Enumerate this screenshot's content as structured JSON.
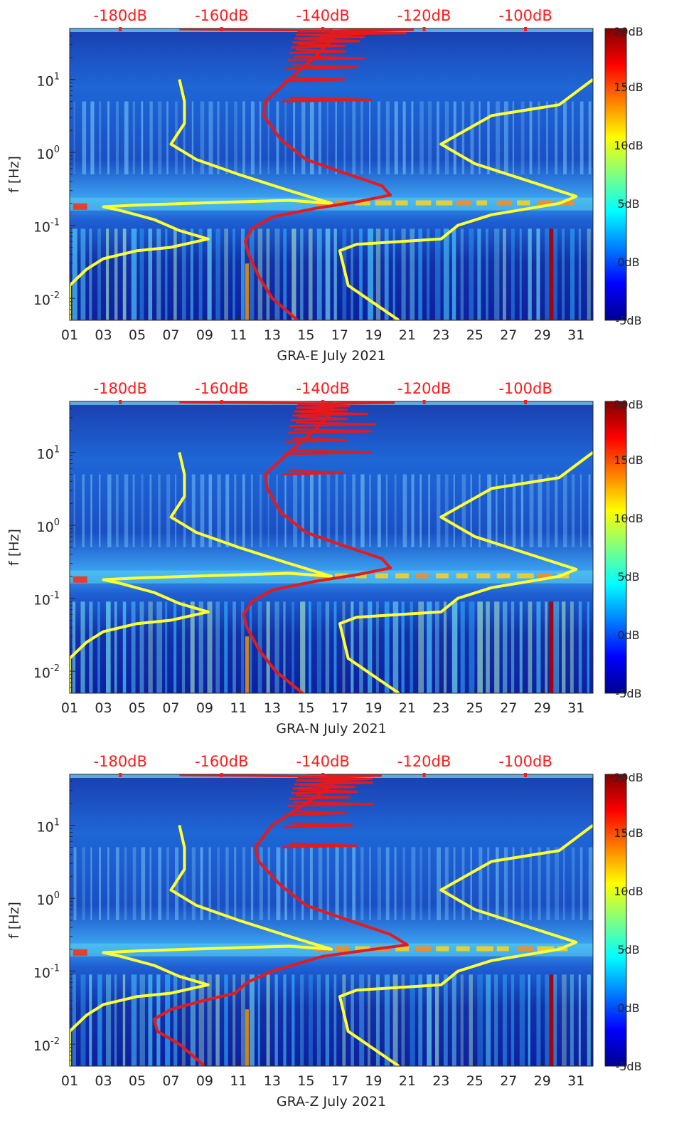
{
  "chart_data": [
    {
      "type": "heatmap",
      "title": "",
      "xlabel": "GRA-E July 2021",
      "ylabel": "f [Hz]",
      "x_tick_labels": [
        "01",
        "03",
        "05",
        "07",
        "09",
        "11",
        "13",
        "15",
        "17",
        "19",
        "21",
        "23",
        "25",
        "27",
        "29",
        "31"
      ],
      "x_ticks": [
        1,
        3,
        5,
        7,
        9,
        11,
        13,
        15,
        17,
        19,
        21,
        23,
        25,
        27,
        29,
        31
      ],
      "xlim": [
        1,
        32
      ],
      "y_tick_labels": [
        "10^-2",
        "10^-1",
        "10^0",
        "10^1"
      ],
      "ylim_hz": [
        0.005,
        50
      ],
      "top_axis_labels": [
        "-180dB",
        "-160dB",
        "-140dB",
        "-120dB",
        "-100dB"
      ],
      "top_axis_days": [
        4,
        10,
        16,
        22,
        28
      ],
      "colorbar_labels": [
        "20dB",
        "15dB",
        "10dB",
        "5dB",
        "0dB",
        "-5dB"
      ],
      "colorbar_range_db": [
        -5,
        20
      ],
      "series": [
        {
          "name": "noise model bounds (yellow)",
          "color": "#ffff33",
          "points": [
            [
              1,
              0.005
            ],
            [
              1,
              0.015
            ],
            [
              2,
              0.025
            ],
            [
              3,
              0.035
            ],
            [
              5,
              0.045
            ],
            [
              7,
              0.05
            ],
            [
              8.5,
              0.06
            ],
            [
              9.2,
              0.065
            ],
            [
              7.5,
              0.085
            ],
            [
              6,
              0.12
            ],
            [
              4,
              0.16
            ],
            [
              3,
              0.18
            ],
            [
              5,
              0.19
            ],
            [
              8,
              0.2
            ],
            [
              11,
              0.21
            ],
            [
              14,
              0.22
            ],
            [
              16.5,
              0.2
            ],
            [
              14,
              0.3
            ],
            [
              11,
              0.5
            ],
            [
              8.5,
              0.8
            ],
            [
              7,
              1.3
            ],
            [
              7.8,
              2.5
            ],
            [
              7.8,
              5
            ],
            [
              7.5,
              10
            ]
          ]
        },
        {
          "name": "noise model high (yellow)",
          "color": "#ffff33",
          "points": [
            [
              20.5,
              0.005
            ],
            [
              17.5,
              0.015
            ],
            [
              17,
              0.045
            ],
            [
              18,
              0.055
            ],
            [
              23,
              0.065
            ],
            [
              24,
              0.1
            ],
            [
              26,
              0.14
            ],
            [
              30,
              0.2
            ],
            [
              31,
              0.25
            ],
            [
              25,
              0.7
            ],
            [
              23,
              1.3
            ],
            [
              26,
              3.2
            ],
            [
              30,
              4.5
            ],
            [
              32,
              10
            ]
          ]
        },
        {
          "name": "station PSD median (red)",
          "color": "#e41a1c",
          "points": [
            [
              14.5,
              0.005
            ],
            [
              13,
              0.01
            ],
            [
              12.2,
              0.02
            ],
            [
              11.6,
              0.04
            ],
            [
              11.4,
              0.06
            ],
            [
              11.8,
              0.09
            ],
            [
              13,
              0.13
            ],
            [
              15.5,
              0.17
            ],
            [
              18,
              0.21
            ],
            [
              20,
              0.26
            ],
            [
              19.5,
              0.35
            ],
            [
              17,
              0.55
            ],
            [
              15,
              0.8
            ],
            [
              13.5,
              1.5
            ],
            [
              12.5,
              3.2
            ],
            [
              12.6,
              5
            ],
            [
              14,
              10
            ],
            [
              15.5,
              20
            ],
            [
              16.5,
              35
            ],
            [
              16.5,
              50
            ]
          ]
        }
      ]
    },
    {
      "type": "heatmap",
      "title": "",
      "xlabel": "GRA-N July 2021",
      "ylabel": "f [Hz]",
      "x_tick_labels": [
        "01",
        "03",
        "05",
        "07",
        "09",
        "11",
        "13",
        "15",
        "17",
        "19",
        "21",
        "23",
        "25",
        "27",
        "29",
        "31"
      ],
      "x_ticks": [
        1,
        3,
        5,
        7,
        9,
        11,
        13,
        15,
        17,
        19,
        21,
        23,
        25,
        27,
        29,
        31
      ],
      "xlim": [
        1,
        32
      ],
      "y_tick_labels": [
        "10^-2",
        "10^-1",
        "10^0",
        "10^1"
      ],
      "ylim_hz": [
        0.005,
        50
      ],
      "top_axis_labels": [
        "-180dB",
        "-160dB",
        "-140dB",
        "-120dB",
        "-100dB"
      ],
      "top_axis_days": [
        4,
        10,
        16,
        22,
        28
      ],
      "colorbar_labels": [
        "20dB",
        "15dB",
        "10dB",
        "5dB",
        "0dB",
        "-5dB"
      ],
      "colorbar_range_db": [
        -5,
        20
      ],
      "series": [
        {
          "name": "noise model bounds (yellow)",
          "color": "#ffff33",
          "points": [
            [
              1,
              0.005
            ],
            [
              1,
              0.015
            ],
            [
              2,
              0.025
            ],
            [
              3,
              0.035
            ],
            [
              5,
              0.045
            ],
            [
              7,
              0.05
            ],
            [
              8.5,
              0.06
            ],
            [
              9.2,
              0.065
            ],
            [
              7.5,
              0.085
            ],
            [
              6,
              0.12
            ],
            [
              4,
              0.16
            ],
            [
              3,
              0.18
            ],
            [
              5,
              0.19
            ],
            [
              8,
              0.2
            ],
            [
              11,
              0.21
            ],
            [
              14,
              0.22
            ],
            [
              16.5,
              0.2
            ],
            [
              14,
              0.3
            ],
            [
              11,
              0.5
            ],
            [
              8.5,
              0.8
            ],
            [
              7,
              1.3
            ],
            [
              7.8,
              2.5
            ],
            [
              7.8,
              5
            ],
            [
              7.5,
              10
            ]
          ]
        },
        {
          "name": "noise model high (yellow)",
          "color": "#ffff33",
          "points": [
            [
              20.5,
              0.005
            ],
            [
              17.5,
              0.015
            ],
            [
              17,
              0.045
            ],
            [
              18,
              0.055
            ],
            [
              23,
              0.065
            ],
            [
              24,
              0.1
            ],
            [
              26,
              0.14
            ],
            [
              30,
              0.2
            ],
            [
              31,
              0.25
            ],
            [
              25,
              0.7
            ],
            [
              23,
              1.3
            ],
            [
              26,
              3.2
            ],
            [
              30,
              4.5
            ],
            [
              32,
              10
            ]
          ]
        },
        {
          "name": "station PSD median (red)",
          "color": "#e41a1c",
          "points": [
            [
              14.8,
              0.005
            ],
            [
              13.2,
              0.01
            ],
            [
              12.2,
              0.02
            ],
            [
              11.5,
              0.04
            ],
            [
              11.3,
              0.06
            ],
            [
              11.8,
              0.09
            ],
            [
              13,
              0.13
            ],
            [
              15.5,
              0.17
            ],
            [
              18,
              0.21
            ],
            [
              20,
              0.26
            ],
            [
              19.5,
              0.35
            ],
            [
              17,
              0.55
            ],
            [
              15,
              0.8
            ],
            [
              13.5,
              1.5
            ],
            [
              12.7,
              3.2
            ],
            [
              12.6,
              5
            ],
            [
              14,
              10
            ],
            [
              15.5,
              20
            ],
            [
              16.5,
              35
            ],
            [
              16.5,
              50
            ]
          ]
        }
      ]
    },
    {
      "type": "heatmap",
      "title": "",
      "xlabel": "GRA-Z July 2021",
      "ylabel": "f [Hz]",
      "x_tick_labels": [
        "01",
        "03",
        "05",
        "07",
        "09",
        "11",
        "13",
        "15",
        "17",
        "19",
        "21",
        "23",
        "25",
        "27",
        "29",
        "31"
      ],
      "x_ticks": [
        1,
        3,
        5,
        7,
        9,
        11,
        13,
        15,
        17,
        19,
        21,
        23,
        25,
        27,
        29,
        31
      ],
      "xlim": [
        1,
        32
      ],
      "y_tick_labels": [
        "10^-2",
        "10^-1",
        "10^0",
        "10^1"
      ],
      "ylim_hz": [
        0.005,
        50
      ],
      "top_axis_labels": [
        "-180dB",
        "-160dB",
        "-140dB",
        "-120dB",
        "-100dB"
      ],
      "top_axis_days": [
        4,
        10,
        16,
        22,
        28
      ],
      "colorbar_labels": [
        "20dB",
        "15dB",
        "10dB",
        "5dB",
        "0dB",
        "-5dB"
      ],
      "colorbar_range_db": [
        -5,
        20
      ],
      "series": [
        {
          "name": "noise model bounds (yellow)",
          "color": "#ffff33",
          "points": [
            [
              1,
              0.005
            ],
            [
              1,
              0.015
            ],
            [
              2,
              0.025
            ],
            [
              3,
              0.035
            ],
            [
              5,
              0.045
            ],
            [
              7,
              0.05
            ],
            [
              8.5,
              0.06
            ],
            [
              9.2,
              0.065
            ],
            [
              7.5,
              0.085
            ],
            [
              6,
              0.12
            ],
            [
              4,
              0.16
            ],
            [
              3,
              0.18
            ],
            [
              5,
              0.19
            ],
            [
              8,
              0.2
            ],
            [
              11,
              0.21
            ],
            [
              14,
              0.22
            ],
            [
              16.5,
              0.2
            ],
            [
              14,
              0.3
            ],
            [
              11,
              0.5
            ],
            [
              8.5,
              0.8
            ],
            [
              7,
              1.3
            ],
            [
              7.8,
              2.5
            ],
            [
              7.8,
              5
            ],
            [
              7.5,
              10
            ]
          ]
        },
        {
          "name": "noise model high (yellow)",
          "color": "#ffff33",
          "points": [
            [
              20.5,
              0.005
            ],
            [
              17.5,
              0.015
            ],
            [
              17,
              0.045
            ],
            [
              18,
              0.055
            ],
            [
              23,
              0.065
            ],
            [
              24,
              0.1
            ],
            [
              26,
              0.14
            ],
            [
              30,
              0.2
            ],
            [
              31,
              0.25
            ],
            [
              25,
              0.7
            ],
            [
              23,
              1.3
            ],
            [
              26,
              3.2
            ],
            [
              30,
              4.5
            ],
            [
              32,
              10
            ]
          ]
        },
        {
          "name": "station PSD median (red)",
          "color": "#e41a1c",
          "points": [
            [
              9,
              0.005
            ],
            [
              7.5,
              0.01
            ],
            [
              6.2,
              0.015
            ],
            [
              6,
              0.022
            ],
            [
              7,
              0.03
            ],
            [
              9,
              0.04
            ],
            [
              10.8,
              0.05
            ],
            [
              11.5,
              0.07
            ],
            [
              13,
              0.1
            ],
            [
              16,
              0.16
            ],
            [
              19,
              0.2
            ],
            [
              21,
              0.23
            ],
            [
              20,
              0.32
            ],
            [
              17,
              0.55
            ],
            [
              15,
              0.8
            ],
            [
              13.5,
              1.5
            ],
            [
              12.2,
              3.2
            ],
            [
              12,
              5
            ],
            [
              13,
              10
            ],
            [
              15,
              20
            ],
            [
              16.5,
              35
            ],
            [
              16.5,
              50
            ]
          ]
        }
      ]
    }
  ]
}
